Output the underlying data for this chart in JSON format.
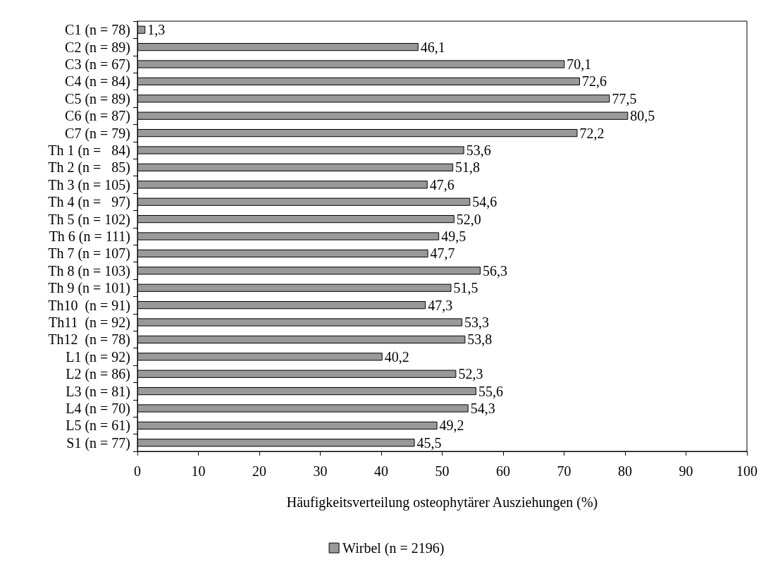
{
  "chart_data": {
    "type": "bar",
    "orientation": "horizontal",
    "xlabel": "Häufigkeitsverteilung osteophytärer Ausziehungen (%)",
    "categories": [
      "C1 (n = 78)",
      "C2 (n = 89)",
      "C3 (n = 67)",
      "C4 (n = 84)",
      "C5 (n = 89)",
      "C6 (n = 87)",
      "C7 (n = 79)",
      "Th 1 (n =   84)",
      "Th 2 (n =   85)",
      "Th 3 (n = 105)",
      "Th 4 (n =   97)",
      "Th 5 (n = 102)",
      "Th 6 (n = 111)",
      "Th 7 (n = 107)",
      "Th 8 (n = 103)",
      "Th 9 (n = 101)",
      "Th10  (n = 91)",
      "Th11  (n = 92)",
      "Th12  (n = 78)",
      "L1 (n = 92)",
      "L2 (n = 86)",
      "L3 (n = 81)",
      "L4 (n = 70)",
      "L5 (n = 61)",
      "S1 (n = 77)"
    ],
    "series": [
      {
        "name": "Wirbel (n = 2196)",
        "color": "#999999",
        "values": [
          1.3,
          46.1,
          70.1,
          72.6,
          77.5,
          80.5,
          72.2,
          53.6,
          51.8,
          47.6,
          54.6,
          52.0,
          49.5,
          47.7,
          56.3,
          51.5,
          47.3,
          53.3,
          53.8,
          40.2,
          52.3,
          55.6,
          54.3,
          49.2,
          45.5
        ],
        "value_labels": [
          "1,3",
          "46,1",
          "70,1",
          "72,6",
          "77,5",
          "80,5",
          "72,2",
          "53,6",
          "51,8",
          "47,6",
          "54,6",
          "52,0",
          "49,5",
          "47,7",
          "56,3",
          "51,5",
          "47,3",
          "53,3",
          "53,8",
          "40,2",
          "52,3",
          "55,6",
          "54,3",
          "49,2",
          "45,5"
        ]
      }
    ],
    "xlim": [
      0,
      100
    ],
    "xticks": [
      0,
      10,
      20,
      30,
      40,
      50,
      60,
      70,
      80,
      90,
      100
    ],
    "grid": false,
    "legend": "bottom"
  }
}
